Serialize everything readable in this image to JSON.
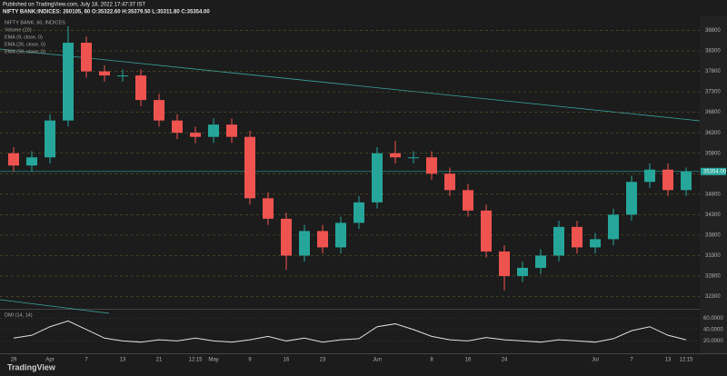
{
  "header": {
    "published": "Published on TradingView.com, July 18, 2022 17:47:37 IST",
    "symbol_line": "NIFTY BANK:INDICES: 260105, 60 O:35322.60 H:35379.50 L:35311.80 C:35354.00"
  },
  "legend": [
    "NIFTY BANK, 60, INDICES",
    "Volume (20)",
    "EMA (9, close, 0)",
    "EMA (26, close, 0)",
    "EMA (50, close, 0)"
  ],
  "footer": "TradingView",
  "chart_data": [
    {
      "type": "candlestick",
      "categories": [
        "29",
        null,
        "Apr",
        null,
        "7",
        null,
        "13",
        null,
        "21",
        null,
        "12:15",
        "May",
        null,
        "9",
        null,
        "16",
        null,
        "23",
        null,
        null,
        "Jun",
        null,
        null,
        "8",
        null,
        "16",
        null,
        "24",
        null,
        null,
        null,
        null,
        "Jul",
        null,
        "7",
        null,
        "13",
        "12:15"
      ],
      "open": [
        35800,
        35500,
        35700,
        36600,
        38500,
        37800,
        37700,
        37700,
        37100,
        36600,
        36300,
        36200,
        36500,
        36200,
        34700,
        34200,
        33300,
        33900,
        33500,
        34100,
        34600,
        35800,
        35700,
        35700,
        35300,
        34900,
        34400,
        33400,
        32800,
        33000,
        33300,
        34000,
        33500,
        33700,
        34300,
        35100,
        35400,
        34900
      ],
      "high": [
        35950,
        35850,
        36750,
        38900,
        38650,
        37950,
        37850,
        37850,
        37250,
        36750,
        36450,
        36650,
        36650,
        36350,
        34850,
        34350,
        34050,
        34050,
        34250,
        34750,
        35950,
        36100,
        35850,
        35850,
        35450,
        35050,
        34550,
        33550,
        33150,
        33450,
        34150,
        34150,
        33850,
        34450,
        35250,
        35550,
        35550,
        35450
      ],
      "low": [
        35350,
        35350,
        35550,
        36450,
        37650,
        37550,
        37550,
        36950,
        36450,
        36150,
        36050,
        36050,
        36050,
        34550,
        34050,
        32950,
        33150,
        33350,
        33350,
        33950,
        34450,
        35550,
        35550,
        35150,
        34750,
        34250,
        33250,
        32450,
        32650,
        32850,
        33150,
        33350,
        33350,
        33550,
        34150,
        34950,
        34750,
        34750
      ],
      "close": [
        35500,
        35700,
        36600,
        38500,
        37800,
        37700,
        37700,
        37100,
        36600,
        36300,
        36200,
        36500,
        36200,
        34700,
        34200,
        33300,
        33900,
        33500,
        34100,
        34600,
        35800,
        35700,
        35700,
        35300,
        34900,
        34400,
        33400,
        32800,
        33000,
        33300,
        34000,
        33500,
        33700,
        34300,
        35100,
        35400,
        34900,
        35354
      ],
      "up_color": "#26a69a",
      "down_color": "#ef5350",
      "ylim": [
        32000,
        39100
      ],
      "yticks": [
        38800,
        38300,
        37800,
        37300,
        36800,
        36300,
        35800,
        35300,
        34800,
        34300,
        33800,
        33300,
        32800,
        32300
      ],
      "last_price": {
        "value": 35354,
        "label": "35354.00"
      }
    },
    {
      "type": "line",
      "title": "DMI (14, 14)",
      "values": [
        25,
        30,
        45,
        55,
        40,
        25,
        20,
        18,
        22,
        20,
        25,
        20,
        18,
        22,
        28,
        20,
        25,
        18,
        22,
        24,
        45,
        50,
        40,
        28,
        22,
        20,
        26,
        22,
        20,
        18,
        22,
        20,
        18,
        24,
        38,
        45,
        30,
        22
      ],
      "color": "#e0e0e0",
      "ylim": [
        0,
        70
      ],
      "yticks": [
        {
          "value": 60,
          "label": "60.0000"
        },
        {
          "value": 40,
          "label": "40.0000"
        },
        {
          "value": 20,
          "label": "20.0000"
        }
      ]
    }
  ]
}
